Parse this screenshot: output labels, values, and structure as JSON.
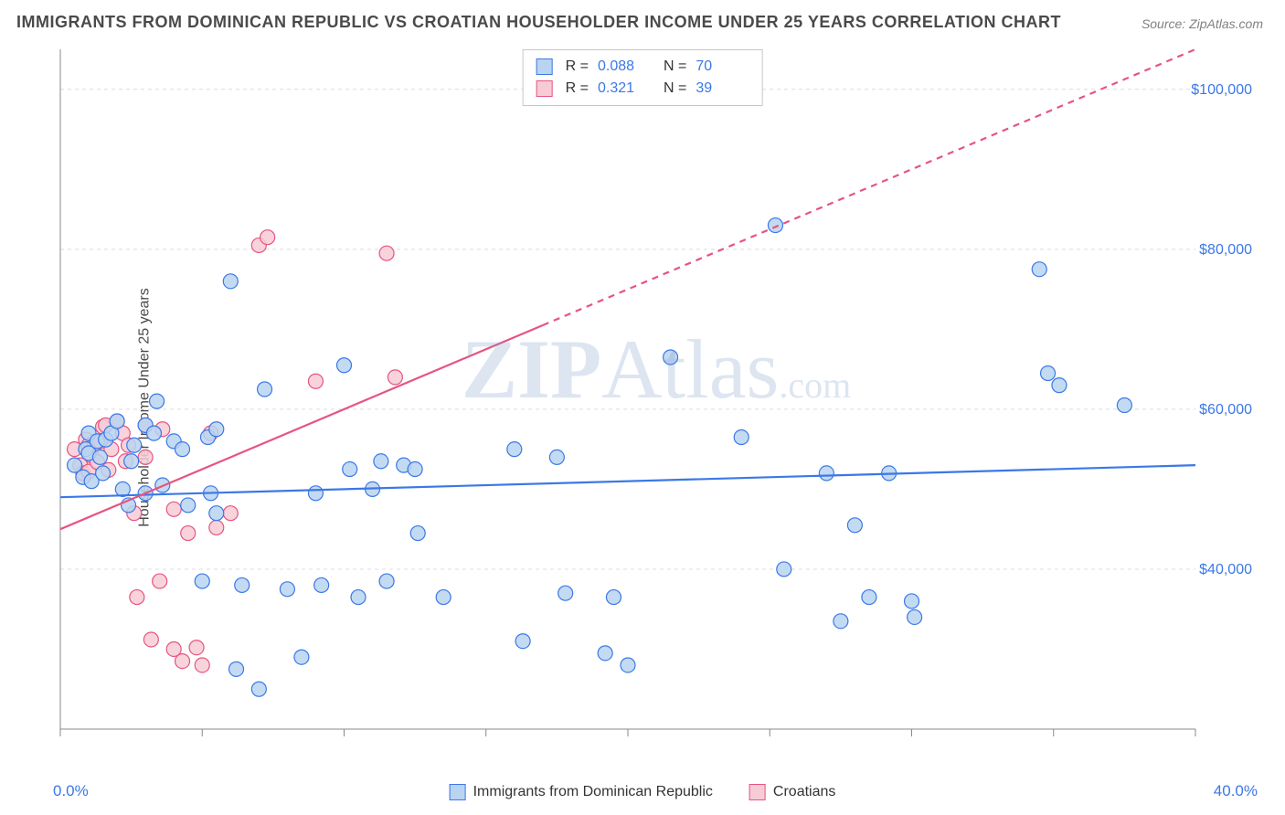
{
  "title": "IMMIGRANTS FROM DOMINICAN REPUBLIC VS CROATIAN HOUSEHOLDER INCOME UNDER 25 YEARS CORRELATION CHART",
  "source": "Source: ZipAtlas.com",
  "yaxis_label": "Householder Income Under 25 years",
  "watermark": {
    "zip": "ZIP",
    "atlas": "Atlas",
    "com": ".com"
  },
  "chart": {
    "type": "scatter",
    "xlim": [
      0,
      40
    ],
    "ylim": [
      20000,
      105000
    ],
    "x_ticks": [
      0,
      5,
      10,
      15,
      20,
      25,
      30,
      35,
      40
    ],
    "y_gridlines": [
      40000,
      60000,
      80000,
      100000
    ],
    "y_tick_labels": [
      "$40,000",
      "$60,000",
      "$80,000",
      "$100,000"
    ],
    "x_left_label": "0.0%",
    "x_right_label": "40.0%",
    "background_color": "#ffffff",
    "grid_color": "#dcdcdc",
    "axis_color": "#888888",
    "marker_radius": 8,
    "marker_stroke_width": 1.2,
    "trend_stroke_width": 2.2,
    "series": [
      {
        "id": "dominican",
        "label": "Immigrants from Dominican Republic",
        "fill": "#b9d4f1",
        "stroke": "#3b78e7",
        "R": "0.088",
        "N": "70",
        "trend": {
          "x1": 0,
          "y1": 49000,
          "x2": 40,
          "y2": 53000,
          "dash": false
        },
        "points": [
          [
            0.5,
            53000
          ],
          [
            0.8,
            51500
          ],
          [
            0.9,
            55000
          ],
          [
            1.0,
            57000
          ],
          [
            1.0,
            54500
          ],
          [
            1.1,
            51000
          ],
          [
            1.3,
            56000
          ],
          [
            1.4,
            54000
          ],
          [
            1.5,
            52000
          ],
          [
            1.6,
            56200
          ],
          [
            1.8,
            57000
          ],
          [
            2.0,
            58500
          ],
          [
            2.2,
            50000
          ],
          [
            2.4,
            48000
          ],
          [
            2.5,
            53500
          ],
          [
            2.6,
            55500
          ],
          [
            3.0,
            58000
          ],
          [
            3.0,
            49500
          ],
          [
            3.3,
            57000
          ],
          [
            3.4,
            61000
          ],
          [
            3.6,
            50500
          ],
          [
            4.0,
            56000
          ],
          [
            4.3,
            55000
          ],
          [
            4.5,
            48000
          ],
          [
            5.0,
            38500
          ],
          [
            5.2,
            56500
          ],
          [
            5.3,
            49500
          ],
          [
            5.5,
            47000
          ],
          [
            5.5,
            57500
          ],
          [
            6.0,
            76000
          ],
          [
            6.2,
            27500
          ],
          [
            6.4,
            38000
          ],
          [
            7.0,
            25000
          ],
          [
            7.2,
            62500
          ],
          [
            8.0,
            37500
          ],
          [
            8.5,
            29000
          ],
          [
            9.0,
            49500
          ],
          [
            9.2,
            38000
          ],
          [
            10.0,
            65500
          ],
          [
            10.2,
            52500
          ],
          [
            10.5,
            36500
          ],
          [
            11.0,
            50000
          ],
          [
            11.3,
            53500
          ],
          [
            11.5,
            38500
          ],
          [
            12.1,
            53000
          ],
          [
            12.5,
            52500
          ],
          [
            12.6,
            44500
          ],
          [
            13.5,
            36500
          ],
          [
            16.0,
            55000
          ],
          [
            16.3,
            31000
          ],
          [
            17.5,
            54000
          ],
          [
            17.8,
            37000
          ],
          [
            19.2,
            29500
          ],
          [
            19.5,
            36500
          ],
          [
            20.0,
            28000
          ],
          [
            21.5,
            66500
          ],
          [
            24.0,
            56500
          ],
          [
            25.2,
            83000
          ],
          [
            25.5,
            40000
          ],
          [
            27.0,
            52000
          ],
          [
            27.5,
            33500
          ],
          [
            28.0,
            45500
          ],
          [
            28.5,
            36500
          ],
          [
            29.2,
            52000
          ],
          [
            30.0,
            36000
          ],
          [
            30.1,
            34000
          ],
          [
            34.5,
            77500
          ],
          [
            34.8,
            64500
          ],
          [
            35.2,
            63000
          ],
          [
            37.5,
            60500
          ]
        ]
      },
      {
        "id": "croatians",
        "label": "Croatians",
        "fill": "#f7cbd6",
        "stroke": "#e75480",
        "R": "0.321",
        "N": "39",
        "trend": {
          "x1": 0,
          "y1": 45000,
          "x2": 17,
          "y2": 70500,
          "dash": false
        },
        "trend_ext": {
          "x1": 17,
          "y1": 70500,
          "x2": 40,
          "y2": 105000,
          "dash": true
        },
        "points": [
          [
            0.5,
            55000
          ],
          [
            0.7,
            53000
          ],
          [
            0.8,
            52000
          ],
          [
            0.9,
            56200
          ],
          [
            1.0,
            55500
          ],
          [
            1.0,
            52200
          ],
          [
            1.1,
            54200
          ],
          [
            1.2,
            55500
          ],
          [
            1.3,
            53400
          ],
          [
            1.4,
            56000
          ],
          [
            1.5,
            57800
          ],
          [
            1.6,
            58000
          ],
          [
            1.7,
            52400
          ],
          [
            1.8,
            55000
          ],
          [
            2.0,
            58500
          ],
          [
            2.2,
            57000
          ],
          [
            2.3,
            53500
          ],
          [
            2.4,
            55500
          ],
          [
            2.6,
            47000
          ],
          [
            2.7,
            36500
          ],
          [
            3.0,
            54000
          ],
          [
            3.0,
            58000
          ],
          [
            3.2,
            31200
          ],
          [
            3.5,
            38500
          ],
          [
            3.6,
            57500
          ],
          [
            4.0,
            47500
          ],
          [
            4.0,
            30000
          ],
          [
            4.3,
            28500
          ],
          [
            4.5,
            44500
          ],
          [
            4.8,
            30200
          ],
          [
            5.0,
            28000
          ],
          [
            5.3,
            57000
          ],
          [
            5.5,
            45200
          ],
          [
            6.0,
            47000
          ],
          [
            7.0,
            80500
          ],
          [
            7.3,
            81500
          ],
          [
            9.0,
            63500
          ],
          [
            11.5,
            79500
          ],
          [
            11.8,
            64000
          ]
        ]
      }
    ]
  },
  "legend_top": {
    "R_label": "R =",
    "N_label": "N ="
  }
}
